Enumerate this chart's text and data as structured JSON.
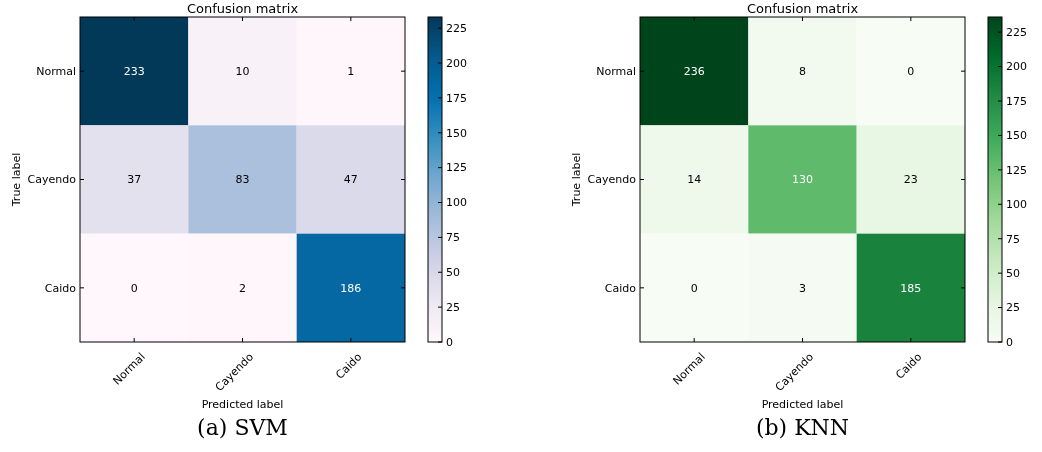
{
  "chart_data": [
    {
      "type": "heatmap",
      "title": "Confusion matrix",
      "xlabel": "Predicted label",
      "ylabel": "True label",
      "categories": [
        "Normal",
        "Cayendo",
        "Caido"
      ],
      "y_categories": [
        "Normal",
        "Cayendo",
        "Caido"
      ],
      "cells": [
        [
          233,
          10,
          1
        ],
        [
          37,
          83,
          47
        ],
        [
          0,
          2,
          186
        ]
      ],
      "clim": [
        0,
        233
      ],
      "cticks": [
        0,
        25,
        50,
        75,
        100,
        125,
        150,
        175,
        200,
        225
      ],
      "data_labels": true,
      "colors": [
        "#fff7fb",
        "#ece7f2",
        "#d0d1e6",
        "#a6bddb",
        "#74a9cf",
        "#3690c0",
        "#0570b0",
        "#045a8d",
        "#023858"
      ],
      "annotations": [
        "(a) SVM"
      ]
    },
    {
      "type": "heatmap",
      "title": "Confusion matrix",
      "xlabel": "Predicted label",
      "ylabel": "True label",
      "categories": [
        "Normal",
        "Cayendo",
        "Caido"
      ],
      "y_categories": [
        "Normal",
        "Cayendo",
        "Caido"
      ],
      "cells": [
        [
          236,
          8,
          0
        ],
        [
          14,
          130,
          23
        ],
        [
          0,
          3,
          185
        ]
      ],
      "clim": [
        0,
        236
      ],
      "cticks": [
        0,
        25,
        50,
        75,
        100,
        125,
        150,
        175,
        200,
        225
      ],
      "data_labels": true,
      "colors": [
        "#f7fcf5",
        "#e5f5e0",
        "#c7e9c0",
        "#a1d99b",
        "#74c476",
        "#41ab5d",
        "#238b45",
        "#006d2c",
        "#00441b"
      ],
      "annotations": [
        "(b) KNN"
      ]
    }
  ]
}
